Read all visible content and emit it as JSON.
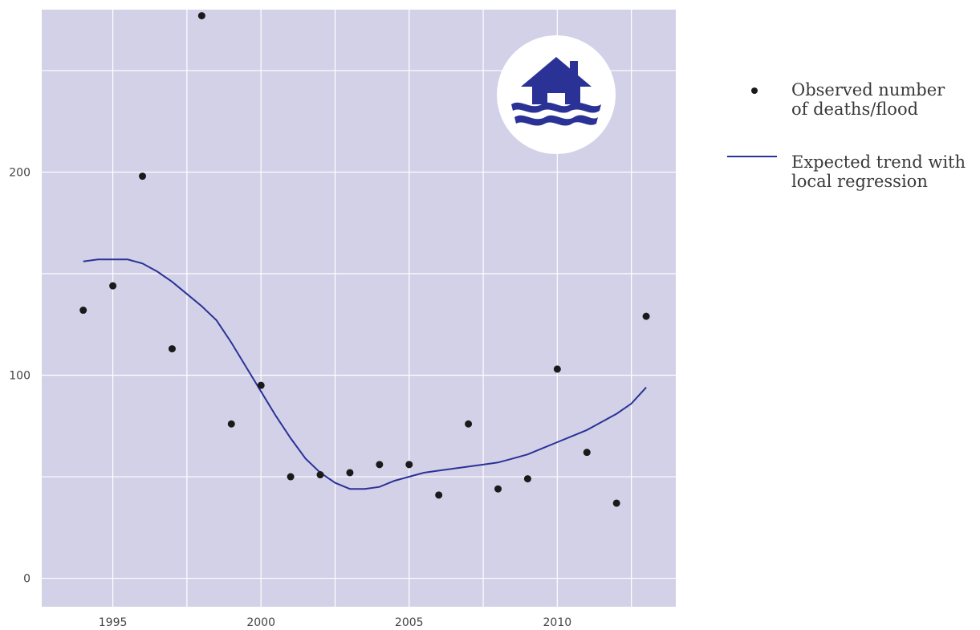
{
  "chart_data": {
    "type": "scatter",
    "title": "",
    "xlabel": "",
    "ylabel": "",
    "xlim": [
      1992.6,
      2014.0
    ],
    "ylim": [
      -14,
      280
    ],
    "x_ticks": [
      1995,
      2000,
      2005,
      2010
    ],
    "x_tick_labels": [
      "1995",
      "2000",
      "2005",
      "2010"
    ],
    "y_ticks": [
      0,
      100,
      200
    ],
    "y_tick_labels": [
      "0",
      "100",
      "200"
    ],
    "grid": true,
    "legend_position": "right",
    "series": [
      {
        "name": "Observed number\nof deaths/flood",
        "type": "scatter",
        "x": [
          1994,
          1995,
          1996,
          1997,
          1998,
          1999,
          2000,
          2001,
          2002,
          2003,
          2004,
          2005,
          2006,
          2007,
          2008,
          2009,
          2010,
          2011,
          2012,
          2013
        ],
        "y": [
          132,
          144,
          198,
          113,
          277,
          76,
          95,
          50,
          51,
          52,
          56,
          56,
          41,
          76,
          44,
          49,
          103,
          62,
          37,
          129
        ]
      },
      {
        "name": "Expected trend with\nlocal regression",
        "type": "line",
        "x": [
          1994,
          1994.5,
          1995,
          1995.5,
          1996,
          1996.5,
          1997,
          1997.5,
          1998,
          1998.5,
          1999,
          1999.5,
          2000,
          2000.5,
          2001,
          2001.5,
          2002,
          2002.5,
          2003,
          2003.5,
          2004,
          2004.5,
          2005,
          2005.5,
          2006,
          2006.5,
          2007,
          2007.5,
          2008,
          2008.5,
          2009,
          2009.5,
          2010,
          2010.5,
          2011,
          2011.5,
          2012,
          2012.5,
          2013
        ],
        "y": [
          156,
          157,
          157,
          157,
          155,
          151,
          146,
          140,
          134,
          127,
          116,
          104,
          92,
          80,
          69,
          59,
          52,
          47,
          44,
          44,
          45,
          48,
          50,
          52,
          53,
          54,
          55,
          56,
          57,
          59,
          61,
          64,
          67,
          70,
          73,
          77,
          81,
          86,
          94
        ]
      }
    ]
  },
  "legend": {
    "observed_label": "Observed number\nof deaths/flood",
    "trend_label": "Expected trend with\nlocal regression"
  },
  "colors": {
    "plot_background": "#d2d1e8",
    "grid": "#ffffff",
    "points": "#1a1a1a",
    "trend_line": "#2b3296",
    "icon_background": "#ffffff",
    "icon": "#2b3296"
  },
  "icon": "flood-house-icon"
}
